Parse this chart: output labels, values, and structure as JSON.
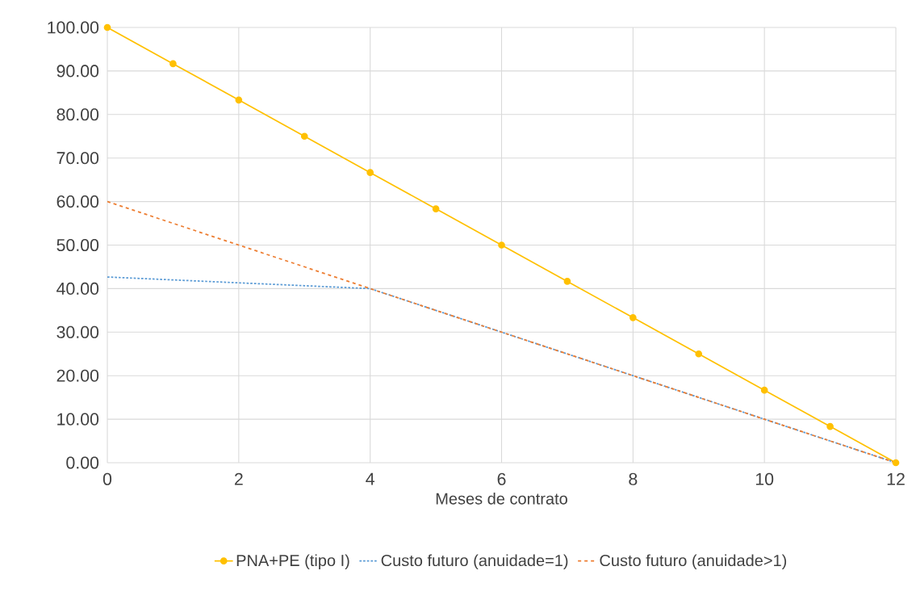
{
  "chart_data": {
    "type": "line",
    "xlabel": "Meses de contrato",
    "x": [
      0,
      1,
      2,
      3,
      4,
      5,
      6,
      7,
      8,
      9,
      10,
      11,
      12
    ],
    "series": [
      {
        "name": "PNA+PE (tipo I)",
        "color": "#ffc000",
        "marker": "circle",
        "line_style": "solid",
        "values": [
          100,
          91.67,
          83.33,
          75,
          66.67,
          58.33,
          50,
          41.67,
          33.33,
          25,
          16.67,
          8.33,
          0
        ]
      },
      {
        "name": "Custo futuro (anuidade=1)",
        "color": "#5b9bd5",
        "marker": "none",
        "line_style": "dotted",
        "values": [
          42.67,
          42,
          41.33,
          40.67,
          40,
          35,
          30,
          25,
          20,
          15,
          10,
          5,
          0
        ]
      },
      {
        "name": "Custo futuro (anuidade>1)",
        "color": "#ed7d31",
        "marker": "none",
        "line_style": "dashed",
        "values": [
          60,
          55,
          50,
          45,
          40,
          35,
          30,
          25,
          20,
          15,
          10,
          5,
          0
        ]
      }
    ],
    "xlim": [
      0,
      12
    ],
    "xticks": [
      0,
      2,
      4,
      6,
      8,
      10,
      12
    ],
    "ylim": [
      0,
      100
    ],
    "yticks": [
      {
        "value": 0,
        "label": "0.00"
      },
      {
        "value": 10,
        "label": "10.00"
      },
      {
        "value": 20,
        "label": "20.00"
      },
      {
        "value": 30,
        "label": "30.00"
      },
      {
        "value": 40,
        "label": "40.00"
      },
      {
        "value": 50,
        "label": "50.00"
      },
      {
        "value": 60,
        "label": "60.00"
      },
      {
        "value": 70,
        "label": "70.00"
      },
      {
        "value": 80,
        "label": "80.00"
      },
      {
        "value": 90,
        "label": "90.00"
      },
      {
        "value": 100,
        "label": "100.00"
      }
    ],
    "grid": true,
    "legend": "bottom"
  }
}
